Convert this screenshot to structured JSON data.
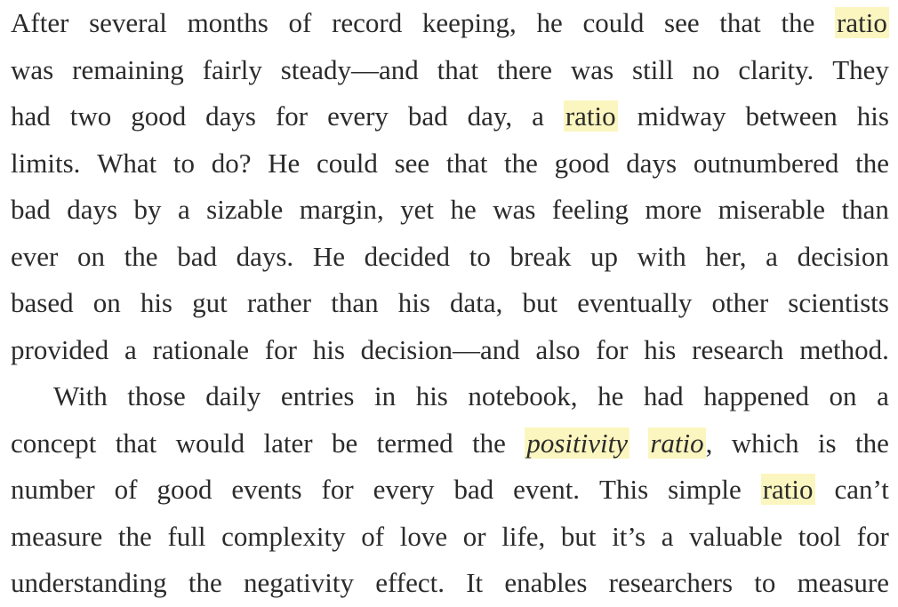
{
  "highlight_color": "#fbf6bf",
  "text_color": "#2b2b2b",
  "paragraphs": [
    {
      "lines": [
        [
          {
            "t": "After"
          },
          {
            "t": "several"
          },
          {
            "t": "months"
          },
          {
            "t": "of"
          },
          {
            "t": "record"
          },
          {
            "t": "keeping,"
          },
          {
            "t": "he"
          },
          {
            "t": "could"
          },
          {
            "t": "see"
          },
          {
            "t": "that"
          },
          {
            "t": "the"
          },
          {
            "t": "ratio",
            "hl": true
          }
        ],
        [
          {
            "t": "was"
          },
          {
            "t": "remaining"
          },
          {
            "t": "fairly"
          },
          {
            "t": "steady—and"
          },
          {
            "t": "that"
          },
          {
            "t": "there"
          },
          {
            "t": "was"
          },
          {
            "t": "still"
          },
          {
            "t": "no"
          },
          {
            "t": "clarity."
          },
          {
            "t": "They"
          }
        ],
        [
          {
            "t": "had"
          },
          {
            "t": "two"
          },
          {
            "t": "good"
          },
          {
            "t": "days"
          },
          {
            "t": "for"
          },
          {
            "t": "every"
          },
          {
            "t": "bad"
          },
          {
            "t": "day,"
          },
          {
            "t": "a"
          },
          {
            "t": "ratio",
            "hl": true
          },
          {
            "t": "midway"
          },
          {
            "t": "between"
          },
          {
            "t": "his"
          }
        ],
        [
          {
            "t": "limits."
          },
          {
            "t": "What"
          },
          {
            "t": "to"
          },
          {
            "t": "do?"
          },
          {
            "t": "He"
          },
          {
            "t": "could"
          },
          {
            "t": "see"
          },
          {
            "t": "that"
          },
          {
            "t": "the"
          },
          {
            "t": "good"
          },
          {
            "t": "days"
          },
          {
            "t": "outnumbered"
          },
          {
            "t": "the"
          }
        ],
        [
          {
            "t": "bad"
          },
          {
            "t": "days"
          },
          {
            "t": "by"
          },
          {
            "t": "a"
          },
          {
            "t": "sizable"
          },
          {
            "t": "margin,"
          },
          {
            "t": "yet"
          },
          {
            "t": "he"
          },
          {
            "t": "was"
          },
          {
            "t": "feeling"
          },
          {
            "t": "more"
          },
          {
            "t": "miserable"
          },
          {
            "t": "than"
          }
        ],
        [
          {
            "t": "ever"
          },
          {
            "t": "on"
          },
          {
            "t": "the"
          },
          {
            "t": "bad"
          },
          {
            "t": "days."
          },
          {
            "t": "He"
          },
          {
            "t": "decided"
          },
          {
            "t": "to"
          },
          {
            "t": "break"
          },
          {
            "t": "up"
          },
          {
            "t": "with"
          },
          {
            "t": "her,"
          },
          {
            "t": "a"
          },
          {
            "t": "decision"
          }
        ],
        [
          {
            "t": "based"
          },
          {
            "t": "on"
          },
          {
            "t": "his"
          },
          {
            "t": "gut"
          },
          {
            "t": "rather"
          },
          {
            "t": "than"
          },
          {
            "t": "his"
          },
          {
            "t": "data,"
          },
          {
            "t": "but"
          },
          {
            "t": "eventually"
          },
          {
            "t": "other"
          },
          {
            "t": "scientists"
          }
        ],
        [
          {
            "t": "provided"
          },
          {
            "t": "a"
          },
          {
            "t": "rationale"
          },
          {
            "t": "for"
          },
          {
            "t": "his"
          },
          {
            "t": "decision—and"
          },
          {
            "t": "also"
          },
          {
            "t": "for"
          },
          {
            "t": "his"
          },
          {
            "t": "research"
          },
          {
            "t": "method."
          }
        ]
      ]
    },
    {
      "lines": [
        [
          {
            "t": "With"
          },
          {
            "t": "those"
          },
          {
            "t": "daily"
          },
          {
            "t": "entries"
          },
          {
            "t": "in"
          },
          {
            "t": "his"
          },
          {
            "t": "notebook,"
          },
          {
            "t": "he"
          },
          {
            "t": "had"
          },
          {
            "t": "happened"
          },
          {
            "t": "on"
          },
          {
            "t": "a"
          }
        ],
        [
          {
            "t": "concept"
          },
          {
            "t": "that"
          },
          {
            "t": "would"
          },
          {
            "t": "later"
          },
          {
            "t": "be"
          },
          {
            "t": "termed"
          },
          {
            "t": "the"
          },
          {
            "t": "positivity",
            "hl": true,
            "it": true
          },
          {
            "t": "ratio",
            "hl": true,
            "it": true,
            "after": ","
          },
          {
            "t": "which"
          },
          {
            "t": "is"
          },
          {
            "t": "the"
          }
        ],
        [
          {
            "t": "number"
          },
          {
            "t": "of"
          },
          {
            "t": "good"
          },
          {
            "t": "events"
          },
          {
            "t": "for"
          },
          {
            "t": "every"
          },
          {
            "t": "bad"
          },
          {
            "t": "event."
          },
          {
            "t": "This"
          },
          {
            "t": "simple"
          },
          {
            "t": "ratio",
            "hl": true
          },
          {
            "t": "can’t"
          }
        ],
        [
          {
            "t": "measure"
          },
          {
            "t": "the"
          },
          {
            "t": "full"
          },
          {
            "t": "complexity"
          },
          {
            "t": "of"
          },
          {
            "t": "love"
          },
          {
            "t": "or"
          },
          {
            "t": "life,"
          },
          {
            "t": "but"
          },
          {
            "t": "it’s"
          },
          {
            "t": "a"
          },
          {
            "t": "valuable"
          },
          {
            "t": "tool"
          },
          {
            "t": "for"
          }
        ],
        [
          {
            "t": "understanding"
          },
          {
            "t": "the"
          },
          {
            "t": "negativity"
          },
          {
            "t": "effect."
          },
          {
            "t": "It"
          },
          {
            "t": "enables"
          },
          {
            "t": "researchers"
          },
          {
            "t": "to"
          },
          {
            "t": "measure"
          }
        ]
      ]
    }
  ]
}
